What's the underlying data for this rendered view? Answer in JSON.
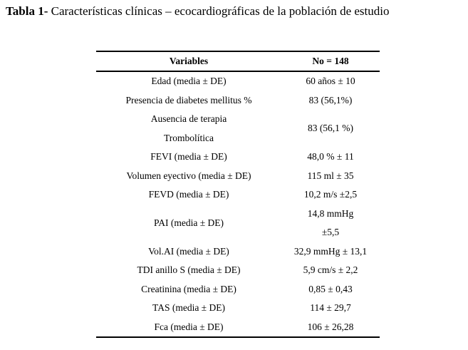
{
  "title": {
    "bold": "Tabla 1-",
    "text": " Características clínicas – ecocardiográficas de la población de estudio"
  },
  "table": {
    "headers": [
      "Variables",
      "No = 148"
    ],
    "rows": [
      {
        "variable": [
          "Edad  (media ± DE)"
        ],
        "value": [
          "60 años  ± 10"
        ]
      },
      {
        "variable": [
          "Presencia  de diabetes mellitus %"
        ],
        "value": [
          "83 (56,1%)"
        ]
      },
      {
        "variable": [
          "Ausencia de terapia",
          "Trombolítica"
        ],
        "value": [
          "83 (56,1 %)"
        ]
      },
      {
        "variable": [
          "FEVI (media ± DE)"
        ],
        "value": [
          "48,0 % ± 11"
        ]
      },
      {
        "variable": [
          "Volumen eyectivo (media ± DE)"
        ],
        "value": [
          "115 ml ± 35"
        ]
      },
      {
        "variable": [
          "FEVD (media ± DE)"
        ],
        "value": [
          "10,2 m/s ±2,5"
        ]
      },
      {
        "variable": [
          "PAI (media ± DE)"
        ],
        "value": [
          "14,8 mmHg",
          "±5,5"
        ]
      },
      {
        "variable": [
          "Vol.AI (media ± DE)"
        ],
        "value": [
          "32,9 mmHg ± 13,1"
        ]
      },
      {
        "variable": [
          "TDI  anillo S (media ± DE)"
        ],
        "value": [
          "5,9 cm/s ± 2,2"
        ]
      },
      {
        "variable": [
          "Creatinina (media ± DE)"
        ],
        "value": [
          "0,85 ± 0,43"
        ]
      },
      {
        "variable": [
          "TAS  (media ± DE)"
        ],
        "value": [
          "114 ± 29,7"
        ]
      },
      {
        "variable": [
          "Fca (media ± DE)"
        ],
        "value": [
          "106 ± 26,28"
        ]
      }
    ]
  }
}
